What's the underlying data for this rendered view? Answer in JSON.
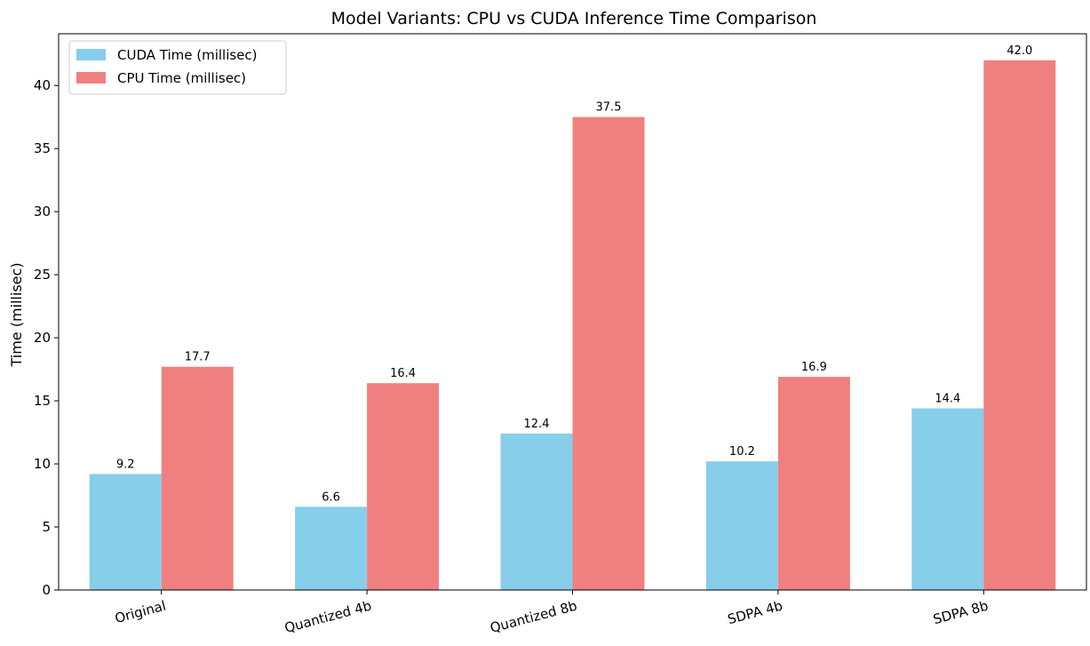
{
  "chart_data": {
    "type": "bar",
    "title": "Model Variants: CPU vs CUDA Inference Time Comparison",
    "xlabel": "",
    "ylabel": "Time (millisec)",
    "categories": [
      "Original",
      "Quantized 4b",
      "Quantized 8b",
      "SDPA 4b",
      "SDPA 8b"
    ],
    "series": [
      {
        "name": "CUDA Time (millisec)",
        "values": [
          9.2,
          6.6,
          12.4,
          10.2,
          14.4
        ],
        "labels": [
          "9.2",
          "6.6",
          "12.4",
          "10.2",
          "14.4"
        ],
        "color": "#87ceeb"
      },
      {
        "name": "CPU Time (millisec)",
        "values": [
          17.7,
          16.4,
          37.5,
          16.9,
          42.0
        ],
        "labels": [
          "17.7",
          "16.4",
          "37.5",
          "16.9",
          "42.0"
        ],
        "color": "#f08080"
      }
    ],
    "ylim": [
      0,
      44.1
    ],
    "yticks": [
      0,
      5,
      10,
      15,
      20,
      25,
      30,
      35,
      40
    ],
    "grid": false,
    "legend": "top-left"
  }
}
